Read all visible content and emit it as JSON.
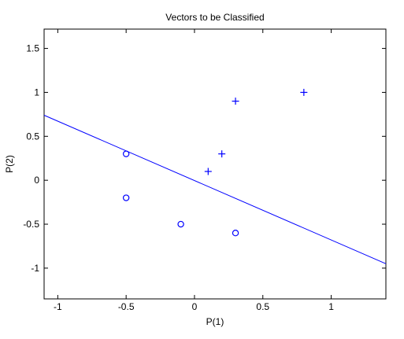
{
  "chart_data": {
    "type": "scatter",
    "title": "Vectors to be Classified",
    "xlabel": "P(1)",
    "ylabel": "P(2)",
    "xlim": [
      -1.1,
      1.4
    ],
    "ylim": [
      -1.35,
      1.72
    ],
    "xticks": [
      -1,
      -0.5,
      0,
      0.5,
      1
    ],
    "yticks": [
      -1,
      -0.5,
      0,
      0.5,
      1,
      1.5
    ],
    "xtick_labels": [
      "-1",
      "-0.5",
      "0",
      "0.5",
      "1"
    ],
    "ytick_labels": [
      "-1",
      "-0.5",
      "0",
      "0.5",
      "1",
      "1.5"
    ],
    "grid": false,
    "series": [
      {
        "marker": "plus",
        "color": "#0000ff",
        "points": [
          [
            0.1,
            0.1
          ],
          [
            0.2,
            0.3
          ],
          [
            0.3,
            0.9
          ],
          [
            0.8,
            1.0
          ]
        ]
      },
      {
        "marker": "circle",
        "color": "#0000ff",
        "points": [
          [
            -0.5,
            0.3
          ],
          [
            -0.5,
            -0.2
          ],
          [
            -0.1,
            -0.5
          ],
          [
            0.3,
            -0.6
          ]
        ]
      }
    ],
    "decision_line": {
      "color": "#0000ff",
      "points": [
        [
          -1.1,
          0.74
        ],
        [
          1.4,
          -0.95
        ]
      ]
    }
  }
}
